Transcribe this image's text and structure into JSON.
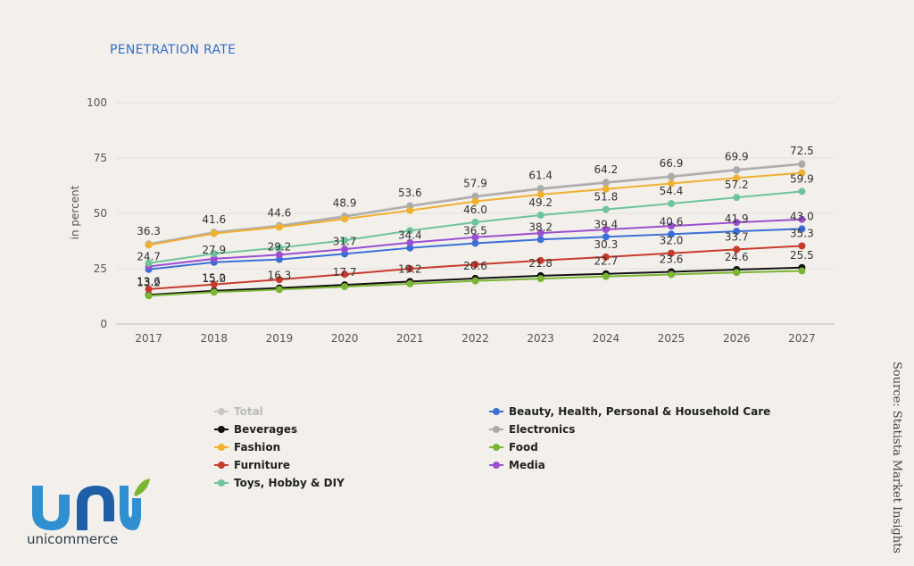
{
  "logo": {
    "text": "unicommerce"
  },
  "source": "Source: Statista Market Insights",
  "chart_data": {
    "type": "line",
    "title": "PENETRATION RATE",
    "ylabel": "in percent",
    "xlabel": "",
    "ylim": [
      0,
      100
    ],
    "yticks": [
      0,
      25,
      50,
      75,
      100
    ],
    "categories": [
      "2017",
      "2018",
      "2019",
      "2020",
      "2021",
      "2022",
      "2023",
      "2024",
      "2025",
      "2026",
      "2027"
    ],
    "grid": true,
    "legend_position": "bottom",
    "series": [
      {
        "name": "Total",
        "color": "#c8c8c8",
        "muted": true,
        "values": [
          36.3,
          41.6,
          44.6,
          48.9,
          53.6,
          57.9,
          61.4,
          64.2,
          66.9,
          69.9,
          72.5
        ],
        "labels": true
      },
      {
        "name": "Beauty, Health, Personal & Household Care",
        "color": "#3b6fd6",
        "values": [
          24.7,
          27.9,
          29.2,
          31.7,
          34.4,
          36.5,
          38.2,
          39.4,
          40.6,
          41.9,
          43.0
        ],
        "labels": true
      },
      {
        "name": "Beverages",
        "color": "#111111",
        "values": [
          13.2,
          15.0,
          16.3,
          17.7,
          19.2,
          20.6,
          21.8,
          22.7,
          23.6,
          24.6,
          25.5
        ],
        "labels": true
      },
      {
        "name": "Electronics",
        "color": "#aaaaaa",
        "values": [
          36.0,
          41.3,
          44.3,
          48.5,
          53.2,
          57.5,
          61.0,
          63.8,
          66.5,
          69.5,
          72.2
        ],
        "labels": false
      },
      {
        "name": "Fashion",
        "color": "#f0b030",
        "values": [
          35.7,
          40.9,
          43.8,
          47.5,
          51.3,
          55.4,
          58.5,
          61.0,
          63.5,
          66.0,
          68.3
        ],
        "labels": false
      },
      {
        "name": "Food",
        "color": "#7ab534",
        "values": [
          12.8,
          14.4,
          15.6,
          16.9,
          18.2,
          19.5,
          20.5,
          21.5,
          22.4,
          23.3,
          24.0
        ],
        "labels": false
      },
      {
        "name": "Furniture",
        "color": "#c83a2c",
        "values": [
          15.8,
          17.9,
          20.1,
          22.5,
          25.0,
          26.9,
          28.7,
          30.3,
          32.0,
          33.7,
          35.3
        ],
        "labels": false
      },
      {
        "name": "Media",
        "color": "#9a4fd0",
        "values": [
          26.0,
          29.5,
          31.3,
          33.8,
          36.8,
          39.2,
          41.1,
          42.7,
          44.3,
          45.9,
          47.3
        ],
        "labels": false
      },
      {
        "name": "Toys, Hobby & DIY",
        "color": "#6dc49a",
        "values": [
          27.5,
          31.8,
          34.5,
          37.8,
          42.2,
          46.0,
          49.2,
          51.8,
          54.4,
          57.2,
          59.9
        ],
        "labels": false
      }
    ],
    "annotations": [
      {
        "x": "2017",
        "y": 13.6,
        "text": "13.6"
      },
      {
        "x": "2018",
        "y": 15.2,
        "text": "15.2"
      },
      {
        "x": "2022",
        "y": 46.0,
        "text": "46.0"
      },
      {
        "x": "2023",
        "y": 49.2,
        "text": "49.2"
      },
      {
        "x": "2024",
        "y": 51.8,
        "text": "51.8"
      },
      {
        "x": "2025",
        "y": 54.4,
        "text": "54.4"
      },
      {
        "x": "2026",
        "y": 57.2,
        "text": "57.2"
      },
      {
        "x": "2027",
        "y": 59.9,
        "text": "59.9"
      },
      {
        "x": "2024",
        "y": 30.3,
        "text": "30.3"
      },
      {
        "x": "2025",
        "y": 32.0,
        "text": "32.0"
      },
      {
        "x": "2026",
        "y": 33.7,
        "text": "33.7"
      },
      {
        "x": "2027",
        "y": 35.3,
        "text": "35.3"
      }
    ]
  }
}
